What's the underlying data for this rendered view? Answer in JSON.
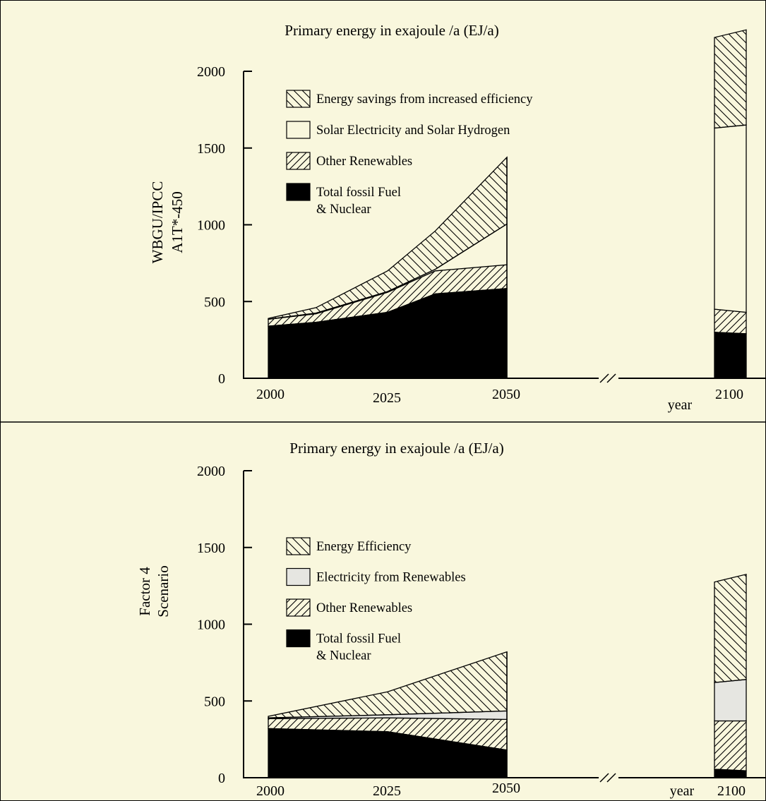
{
  "colors": {
    "background": "#f9f7dd",
    "ink": "#000000",
    "electricity_fill": "#e6e6e1"
  },
  "chart_data": [
    {
      "type": "area",
      "title": "Primary energy in exajoule /a (EJ/a)",
      "ylabel_lines": [
        "WBGU/IPCC",
        "A1T*-450"
      ],
      "xlabel": "year",
      "x_ticks": [
        "2000",
        "2025",
        "2050",
        "2100"
      ],
      "y_ticks": [
        "0",
        "500",
        "1000",
        "1500",
        "2000"
      ],
      "ylim": [
        0,
        2000
      ],
      "axis_break": "between 2050 and 2100",
      "legend_position": "top-left",
      "series": [
        {
          "name": "Total fossil Fuel & Nuclear",
          "legend_lines": [
            "Total fossil Fuel",
            "& Nuclear"
          ],
          "pattern": "solid",
          "x": [
            2000,
            2010,
            2025,
            2035,
            2050
          ],
          "values": [
            340,
            365,
            430,
            550,
            585
          ]
        },
        {
          "name": "Other Renewables",
          "legend_lines": [
            "Other Renewables"
          ],
          "pattern": "hatch-right",
          "x": [
            2000,
            2010,
            2025,
            2035,
            2050
          ],
          "values": [
            385,
            420,
            560,
            700,
            740
          ]
        },
        {
          "name": "Solar Electricity and Solar Hydrogen",
          "legend_lines": [
            "Solar Electricity and Solar Hydrogen"
          ],
          "pattern": "empty",
          "x": [
            2000,
            2010,
            2025,
            2035,
            2050
          ],
          "values": [
            385,
            425,
            565,
            710,
            1005
          ]
        },
        {
          "name": "Energy savings from increased efficiency",
          "legend_lines": [
            "Energy savings from increased efficiency"
          ],
          "pattern": "hatch-left",
          "x": [
            2000,
            2010,
            2025,
            2035,
            2050
          ],
          "values": [
            390,
            460,
            700,
            960,
            1440
          ]
        }
      ],
      "bar_2100": [
        {
          "name": "Total fossil Fuel & Nuclear",
          "left": 300,
          "right": 290
        },
        {
          "name": "Other Renewables",
          "left": 450,
          "right": 430
        },
        {
          "name": "Solar Electricity and Solar Hydrogen",
          "left": 1630,
          "right": 1650
        },
        {
          "name": "Energy savings from increased efficiency",
          "left": 2220,
          "right": 2270
        }
      ]
    },
    {
      "type": "area",
      "title": "Primary energy in exajoule /a (EJ/a)",
      "ylabel_lines": [
        "Factor 4",
        "Scenario"
      ],
      "xlabel": "year",
      "x_ticks": [
        "2000",
        "2025",
        "2050",
        "2100"
      ],
      "y_ticks": [
        "0",
        "500",
        "1000",
        "1500",
        "2000"
      ],
      "ylim": [
        0,
        2000
      ],
      "axis_break": "between 2050 and 2100",
      "legend_position": "left",
      "series": [
        {
          "name": "Total fossil Fuel & Nuclear",
          "legend_lines": [
            "Total fossil Fuel",
            "& Nuclear"
          ],
          "pattern": "solid",
          "x": [
            2000,
            2025,
            2050
          ],
          "values": [
            320,
            300,
            180
          ]
        },
        {
          "name": "Other Renewables",
          "legend_lines": [
            "Other Renewables"
          ],
          "pattern": "hatch-right",
          "x": [
            2000,
            2025,
            2050
          ],
          "values": [
            385,
            390,
            380
          ]
        },
        {
          "name": "Electricity from Renewables",
          "legend_lines": [
            "Electricity from Renewables"
          ],
          "pattern": "grey",
          "x": [
            2000,
            2025,
            2050
          ],
          "values": [
            390,
            410,
            435
          ]
        },
        {
          "name": "Energy Efficiency",
          "legend_lines": [
            "Energy Efficiency"
          ],
          "pattern": "hatch-left",
          "x": [
            2000,
            2025,
            2050
          ],
          "values": [
            400,
            560,
            820
          ]
        }
      ],
      "bar_2100": [
        {
          "name": "Total fossil Fuel & Nuclear",
          "left": 55,
          "right": 45
        },
        {
          "name": "Other Renewables",
          "left": 370,
          "right": 370
        },
        {
          "name": "Electricity from Renewables",
          "left": 620,
          "right": 640
        },
        {
          "name": "Energy Efficiency",
          "left": 1275,
          "right": 1325
        }
      ]
    }
  ]
}
